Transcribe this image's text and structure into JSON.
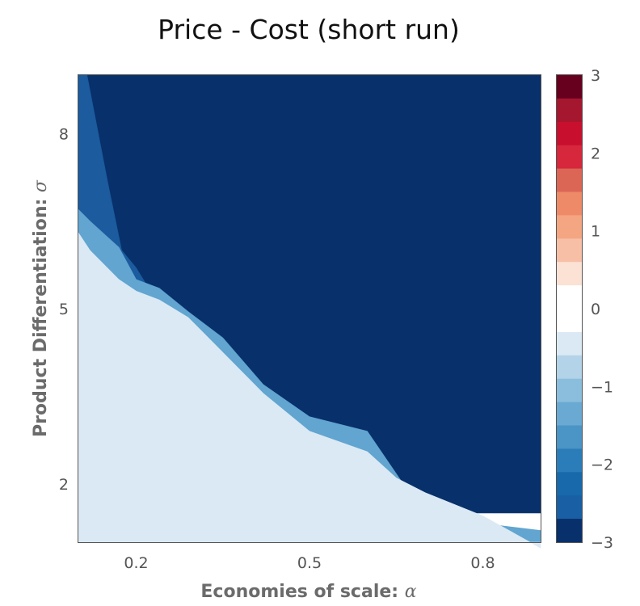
{
  "chart_data": {
    "type": "contour",
    "title": "Price - Cost (short run)",
    "xlabel": "Economies of scale: ",
    "xlabel_symbol": "α",
    "ylabel": "Product Differentiation: ",
    "ylabel_symbol": "σ",
    "xlim": [
      0.1,
      0.9
    ],
    "ylim": [
      1,
      9
    ],
    "x_ticks": [
      0.2,
      0.5,
      0.8
    ],
    "x_tick_labels": [
      "0.2",
      "0.5",
      "0.8"
    ],
    "y_ticks": [
      2,
      5,
      8
    ],
    "y_tick_labels": [
      "2",
      "5",
      "8"
    ],
    "regions": [
      {
        "level": "-3.0 to -2.5",
        "color": "#08306b",
        "boundary": [
          [
            0.1,
            9
          ],
          [
            0.9,
            9
          ],
          [
            0.9,
            1.5
          ],
          [
            0.9,
            1.5
          ],
          [
            0.1,
            1.5
          ]
        ]
      },
      {
        "level": "-2.5 to -2.0",
        "color": "#1b5b9e",
        "boundary": [
          [
            0.1,
            9
          ],
          [
            0.115,
            9
          ],
          [
            0.15,
            7.2
          ],
          [
            0.175,
            6.0
          ],
          [
            0.2,
            5.7
          ],
          [
            0.24,
            5.05
          ],
          [
            0.29,
            4.75
          ],
          [
            0.35,
            4.0
          ],
          [
            0.42,
            3.2
          ],
          [
            0.5,
            2.55
          ],
          [
            0.6,
            2.35
          ],
          [
            0.7,
            1.25
          ],
          [
            0.8,
            1.12
          ],
          [
            0.9,
            1.02
          ],
          [
            0.9,
            1
          ],
          [
            0.1,
            1
          ]
        ]
      },
      {
        "level": "-1.5 to -1.0",
        "color": "#61a5d0",
        "boundary": [
          [
            0.1,
            6.7
          ],
          [
            0.12,
            6.5
          ],
          [
            0.17,
            6.05
          ],
          [
            0.2,
            5.5
          ],
          [
            0.24,
            5.35
          ],
          [
            0.29,
            4.95
          ],
          [
            0.35,
            4.5
          ],
          [
            0.42,
            3.7
          ],
          [
            0.5,
            3.15
          ],
          [
            0.6,
            2.9
          ],
          [
            0.7,
            1.45
          ],
          [
            0.8,
            1.32
          ],
          [
            0.9,
            1.2
          ],
          [
            0.9,
            1
          ],
          [
            0.1,
            1
          ]
        ]
      },
      {
        "level": "-0.5 to 0.0",
        "color": "#dbe9f4",
        "boundary": [
          [
            0.1,
            6.3
          ],
          [
            0.12,
            6.0
          ],
          [
            0.17,
            5.5
          ],
          [
            0.2,
            5.3
          ],
          [
            0.24,
            5.15
          ],
          [
            0.29,
            4.85
          ],
          [
            0.35,
            4.25
          ],
          [
            0.42,
            3.55
          ],
          [
            0.5,
            2.9
          ],
          [
            0.6,
            2.55
          ],
          [
            0.65,
            2.1
          ],
          [
            0.7,
            1.85
          ],
          [
            0.8,
            1.45
          ],
          [
            0.9,
            0.9
          ],
          [
            0.9,
            1
          ],
          [
            0.1,
            1
          ]
        ]
      }
    ],
    "colorbar": {
      "vmin": -3,
      "vmax": 3,
      "ticks": [
        3,
        2,
        1,
        0,
        -1,
        -2,
        -3
      ],
      "tick_labels": [
        "3",
        "2",
        "1",
        "0",
        "−1",
        "−2",
        "−3"
      ],
      "colors_top_to_bottom": [
        "#67001f",
        "#a5172f",
        "#c8102e",
        "#d6273c",
        "#dc6656",
        "#ee8a68",
        "#f4a582",
        "#f7bfa6",
        "#fbe2d5",
        "#ffffff",
        "#ffffff",
        "#dbe9f4",
        "#b3d3e8",
        "#8bbedd",
        "#6aa9d2",
        "#4a94c6",
        "#2b7dba",
        "#1868ac",
        "#185fa3",
        "#08306b"
      ]
    }
  }
}
